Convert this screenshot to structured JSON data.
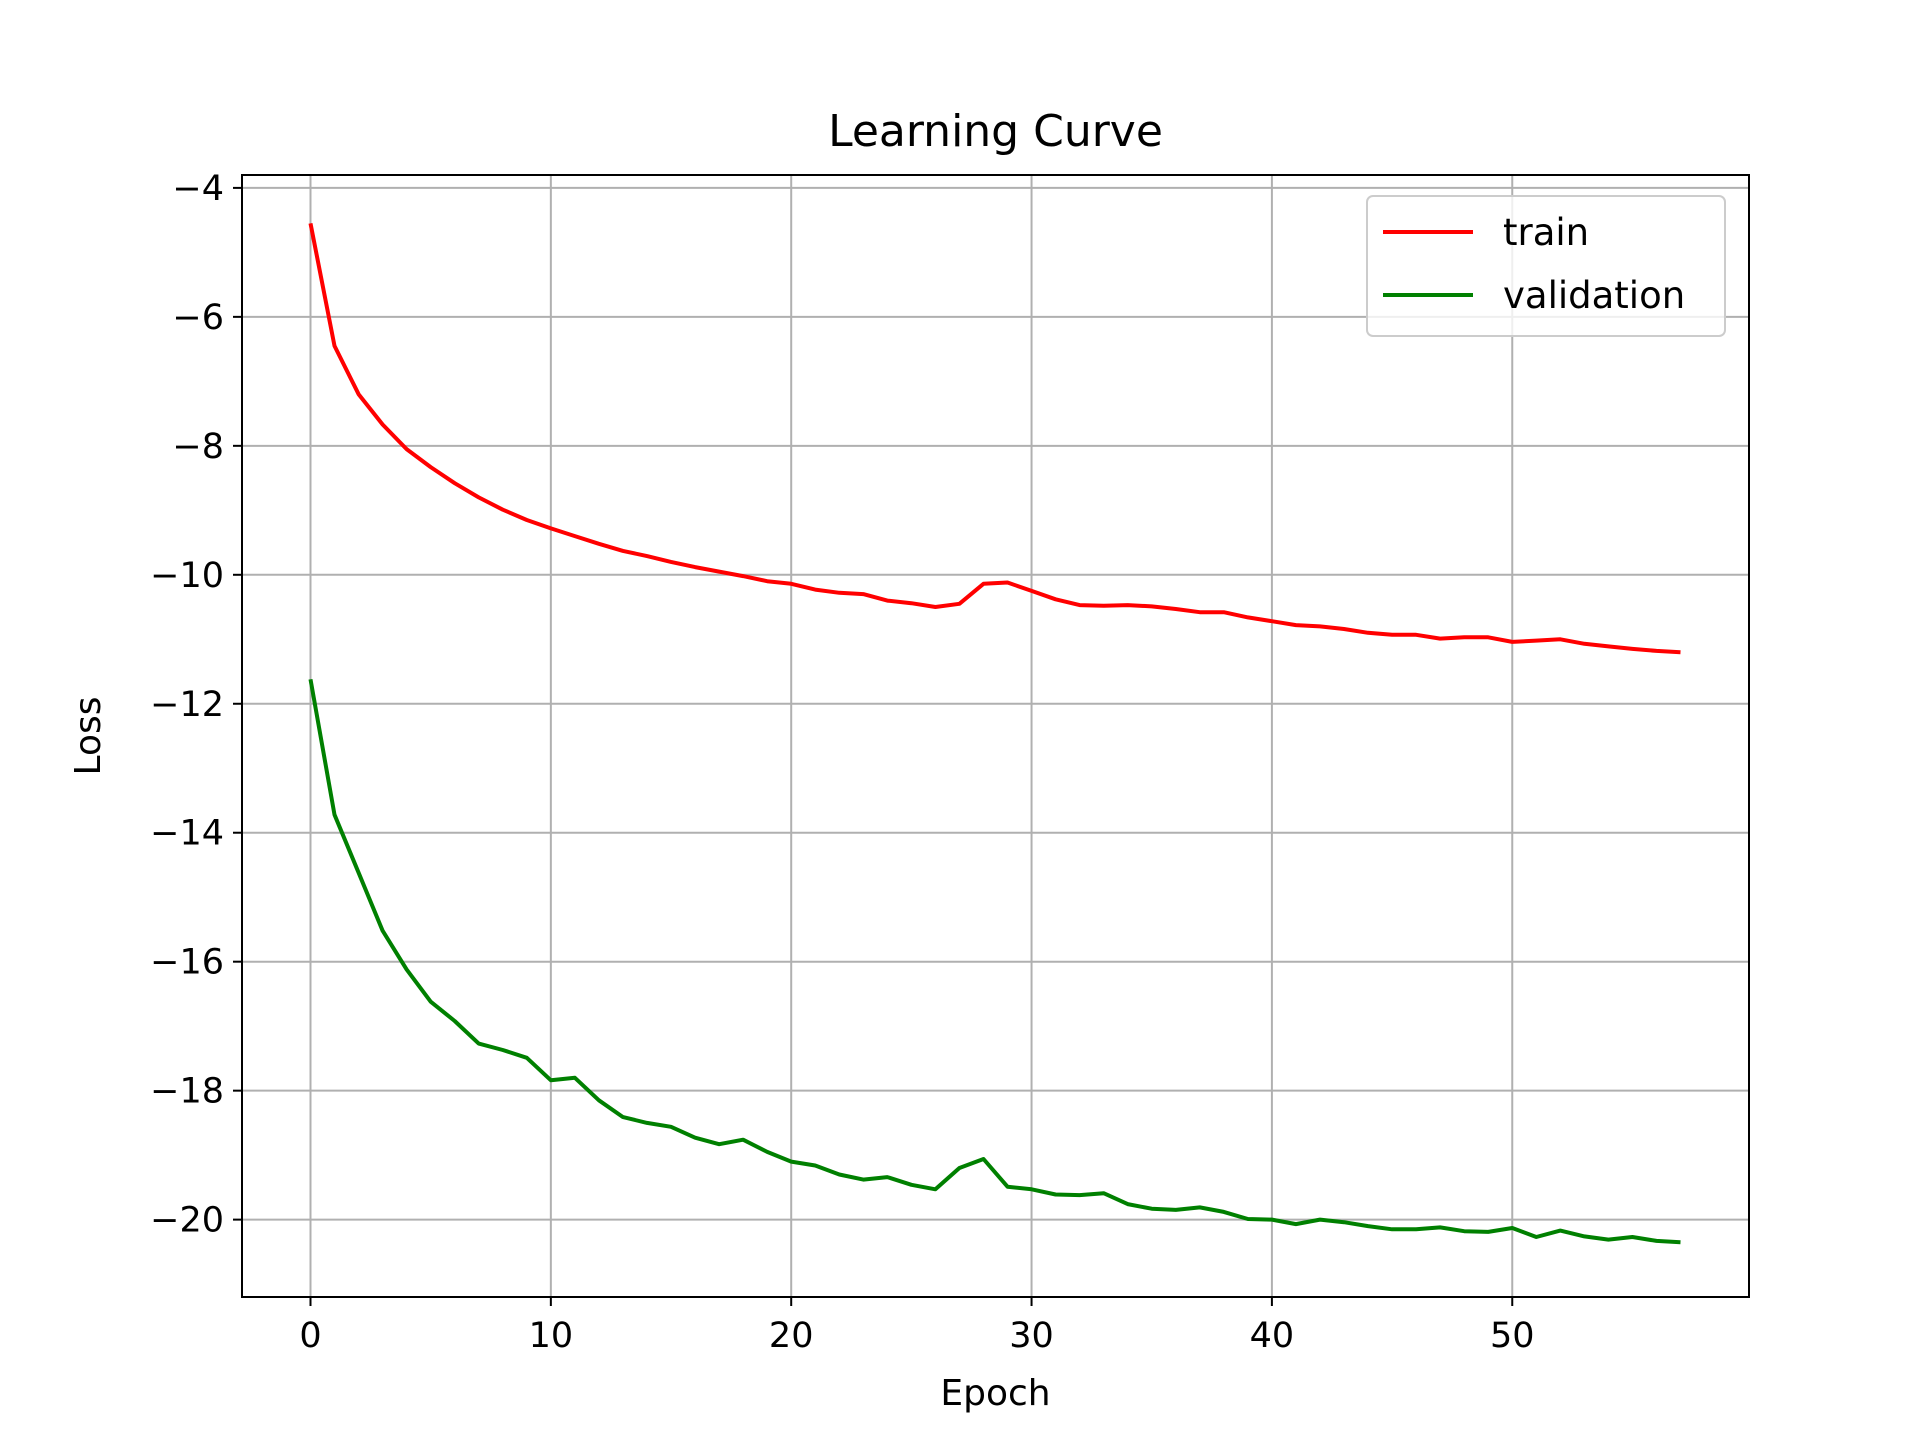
{
  "chart_data": {
    "type": "line",
    "title": "Learning Curve",
    "xlabel": "Epoch",
    "ylabel": "Loss",
    "xlim": [
      -2.85,
      59.85
    ],
    "ylim": [
      -21.2,
      -3.8
    ],
    "xticks": [
      0,
      10,
      20,
      30,
      40,
      50
    ],
    "yticks": [
      -20,
      -18,
      -16,
      -14,
      -12,
      -10,
      -8,
      -6,
      -4
    ],
    "grid": true,
    "legend": "top-right",
    "series": [
      {
        "name": "train",
        "color": "#ff0000",
        "x": [
          0,
          1,
          2,
          3,
          4,
          5,
          6,
          7,
          8,
          9,
          10,
          11,
          12,
          13,
          14,
          15,
          16,
          17,
          18,
          19,
          20,
          21,
          22,
          23,
          24,
          25,
          26,
          27,
          28,
          29,
          30,
          31,
          32,
          33,
          34,
          35,
          36,
          37,
          38,
          39,
          40,
          41,
          42,
          43,
          44,
          45,
          46,
          47,
          48,
          49,
          50,
          51,
          52,
          53,
          54,
          55,
          56,
          57
        ],
        "y": [
          -4.55,
          -6.45,
          -7.2,
          -7.67,
          -8.05,
          -8.33,
          -8.58,
          -8.8,
          -8.99,
          -9.15,
          -9.28,
          -9.4,
          -9.52,
          -9.63,
          -9.71,
          -9.8,
          -9.88,
          -9.95,
          -10.02,
          -10.1,
          -10.14,
          -10.23,
          -10.28,
          -10.3,
          -10.4,
          -10.44,
          -10.5,
          -10.45,
          -10.14,
          -10.12,
          -10.25,
          -10.38,
          -10.47,
          -10.48,
          -10.47,
          -10.49,
          -10.53,
          -10.58,
          -10.58,
          -10.66,
          -10.72,
          -10.78,
          -10.8,
          -10.84,
          -10.9,
          -10.93,
          -10.93,
          -10.99,
          -10.97,
          -10.97,
          -11.04,
          -11.02,
          -11.0,
          -11.07,
          -11.11,
          -11.15,
          -11.18,
          -11.2
        ]
      },
      {
        "name": "validation",
        "color": "#008000",
        "x": [
          0,
          1,
          2,
          3,
          4,
          5,
          6,
          7,
          8,
          9,
          10,
          11,
          12,
          13,
          14,
          15,
          16,
          17,
          18,
          19,
          20,
          21,
          22,
          23,
          24,
          25,
          26,
          27,
          28,
          29,
          30,
          31,
          32,
          33,
          34,
          35,
          36,
          37,
          38,
          39,
          40,
          41,
          42,
          43,
          44,
          45,
          46,
          47,
          48,
          49,
          50,
          51,
          52,
          53,
          54,
          55,
          56,
          57
        ],
        "y": [
          -11.62,
          -13.72,
          -14.62,
          -15.52,
          -16.12,
          -16.62,
          -16.92,
          -17.27,
          -17.37,
          -17.49,
          -17.84,
          -17.8,
          -18.15,
          -18.41,
          -18.5,
          -18.56,
          -18.73,
          -18.83,
          -18.76,
          -18.95,
          -19.1,
          -19.16,
          -19.3,
          -19.38,
          -19.34,
          -19.46,
          -19.53,
          -19.2,
          -19.06,
          -19.49,
          -19.53,
          -19.61,
          -19.62,
          -19.59,
          -19.76,
          -19.83,
          -19.85,
          -19.81,
          -19.88,
          -19.99,
          -20.0,
          -20.07,
          -20.0,
          -20.04,
          -20.1,
          -20.15,
          -20.15,
          -20.12,
          -20.18,
          -20.19,
          -20.13,
          -20.27,
          -20.17,
          -20.26,
          -20.31,
          -20.27,
          -20.33,
          -20.35
        ]
      }
    ]
  }
}
